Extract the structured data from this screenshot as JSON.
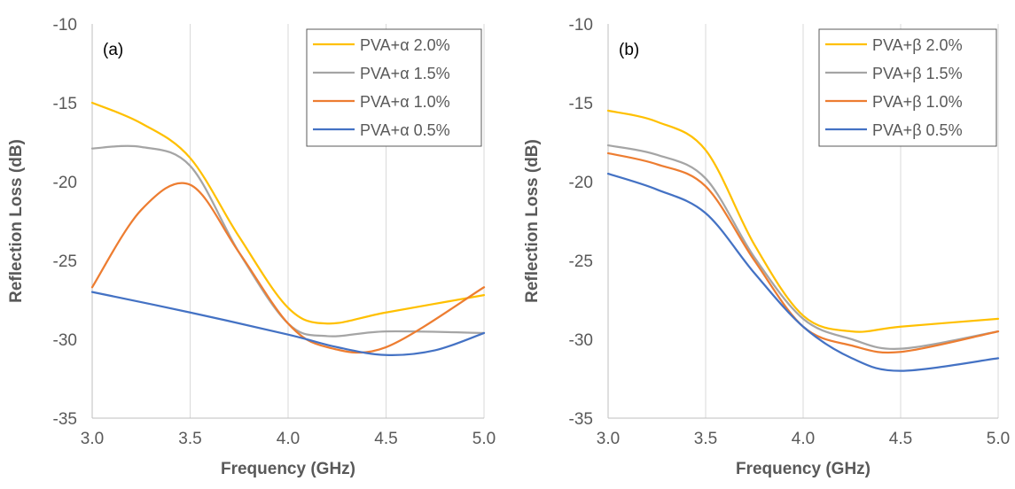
{
  "chart_data": [
    {
      "type": "line",
      "panel_label": "(a)",
      "xlabel": "Frequency (GHz)",
      "ylabel": "Reflection Loss (dB)",
      "xlim": [
        3.0,
        5.0
      ],
      "ylim": [
        -35,
        -10
      ],
      "xticks": [
        "3.0",
        "3.5",
        "4.0",
        "4.5",
        "5.0"
      ],
      "yticks": [
        "-10",
        "-15",
        "-20",
        "-25",
        "-30",
        "-35"
      ],
      "grid": "vertical",
      "legend_position": "top-right",
      "series": [
        {
          "name": "PVA+α 2.0%",
          "color": "#FFC000",
          "x": [
            3.0,
            3.25,
            3.5,
            3.75,
            4.0,
            4.2,
            4.5,
            5.0
          ],
          "y": [
            -15.0,
            -16.3,
            -18.5,
            -23.5,
            -28.0,
            -29.0,
            -28.3,
            -27.2
          ]
        },
        {
          "name": "PVA+α 1.5%",
          "color": "#A5A5A5",
          "x": [
            3.0,
            3.25,
            3.5,
            3.75,
            4.0,
            4.2,
            4.5,
            5.0
          ],
          "y": [
            -17.9,
            -17.8,
            -19.0,
            -24.5,
            -29.0,
            -29.8,
            -29.5,
            -29.6
          ]
        },
        {
          "name": "PVA+α 1.0%",
          "color": "#ED7D31",
          "x": [
            3.0,
            3.25,
            3.5,
            3.75,
            4.0,
            4.2,
            4.5,
            5.0
          ],
          "y": [
            -26.7,
            -21.8,
            -20.2,
            -24.5,
            -29.0,
            -30.5,
            -30.5,
            -26.7
          ]
        },
        {
          "name": "PVA+α 0.5%",
          "color": "#4472C4",
          "x": [
            3.0,
            3.5,
            4.0,
            4.25,
            4.5,
            4.75,
            5.0
          ],
          "y": [
            -27.0,
            -28.3,
            -29.7,
            -30.5,
            -31.0,
            -30.7,
            -29.6
          ]
        }
      ]
    },
    {
      "type": "line",
      "panel_label": "(b)",
      "xlabel": "Frequency (GHz)",
      "ylabel": "Reflection Loss (dB)",
      "xlim": [
        3.0,
        5.0
      ],
      "ylim": [
        -35,
        -10
      ],
      "xticks": [
        "3.0",
        "3.5",
        "4.0",
        "4.5",
        "5.0"
      ],
      "yticks": [
        "-10",
        "-15",
        "-20",
        "-25",
        "-30",
        "-35"
      ],
      "grid": "vertical",
      "legend_position": "top-right",
      "series": [
        {
          "name": "PVA+β 2.0%",
          "color": "#FFC000",
          "x": [
            3.0,
            3.25,
            3.5,
            3.75,
            4.0,
            4.25,
            4.5,
            5.0
          ],
          "y": [
            -15.5,
            -16.2,
            -18.0,
            -24.0,
            -28.5,
            -29.5,
            -29.2,
            -28.7
          ]
        },
        {
          "name": "PVA+β 1.5%",
          "color": "#A5A5A5",
          "x": [
            3.0,
            3.25,
            3.5,
            3.75,
            4.0,
            4.25,
            4.5,
            5.0
          ],
          "y": [
            -17.7,
            -18.3,
            -19.8,
            -24.8,
            -28.7,
            -30.0,
            -30.6,
            -29.5
          ]
        },
        {
          "name": "PVA+β 1.0%",
          "color": "#ED7D31",
          "x": [
            3.0,
            3.25,
            3.5,
            3.75,
            4.0,
            4.25,
            4.5,
            5.0
          ],
          "y": [
            -18.2,
            -18.9,
            -20.3,
            -25.0,
            -29.2,
            -30.4,
            -30.8,
            -29.5
          ]
        },
        {
          "name": "PVA+β 0.5%",
          "color": "#4472C4",
          "x": [
            3.0,
            3.25,
            3.5,
            3.75,
            4.0,
            4.25,
            4.5,
            5.0
          ],
          "y": [
            -19.5,
            -20.5,
            -22.0,
            -25.8,
            -29.2,
            -31.2,
            -32.0,
            -31.2
          ]
        }
      ]
    }
  ]
}
